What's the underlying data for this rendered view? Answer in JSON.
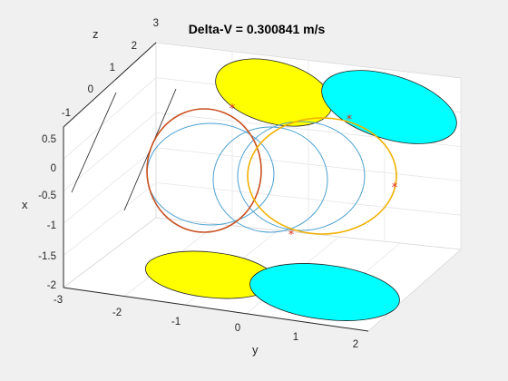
{
  "figure": {
    "background": "#f0f0f0"
  },
  "chart_data": {
    "type": "line3d",
    "title": "Delta-V = 0.300841 m/s",
    "xlabel": "y",
    "ylabel": "x",
    "zlabel": "z",
    "axes": {
      "y": {
        "lim": [
          -3,
          2
        ],
        "ticks": [
          "-3",
          "-2",
          "-1",
          "0",
          "1",
          "2"
        ]
      },
      "x": {
        "lim": [
          -2,
          0.5
        ],
        "ticks": [
          "-2",
          "-1.5",
          "-1",
          "-0.5",
          "0",
          "0.5"
        ]
      },
      "z": {
        "lim": [
          -1,
          3
        ],
        "ticks": [
          "-1",
          "0",
          "1",
          "2",
          "3"
        ]
      }
    },
    "grid": true,
    "colors": {
      "yellow": "#ffff00",
      "cyan": "#00ffff",
      "orbit_blue": "#4aa0d0",
      "orbit_red": "#c85020",
      "orbit_orange": "#f0b000",
      "marker": "#e03020",
      "edge": "#222222"
    },
    "disks": [
      {
        "name": "yellow-top",
        "color": "yellow"
      },
      {
        "name": "cyan-top",
        "color": "cyan"
      },
      {
        "name": "yellow-bottom",
        "color": "yellow"
      },
      {
        "name": "cyan-bottom",
        "color": "cyan"
      }
    ],
    "orbits": [
      {
        "color": "orbit_blue"
      },
      {
        "color": "orbit_blue"
      },
      {
        "color": "orbit_blue"
      },
      {
        "color": "orbit_red"
      },
      {
        "color": "orbit_orange"
      }
    ],
    "markers": [
      "*",
      "*",
      "*",
      "*"
    ]
  }
}
